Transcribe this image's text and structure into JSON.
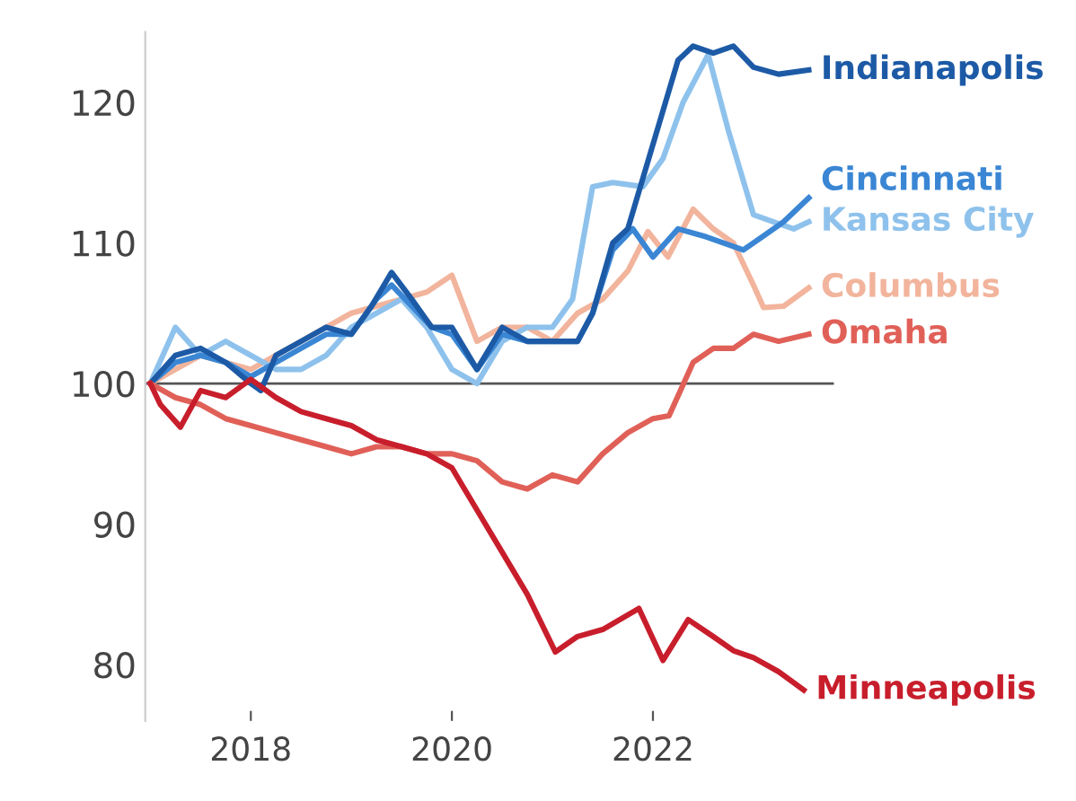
{
  "chart_data": {
    "type": "line",
    "xlim": [
      2016.95,
      2023.8
    ],
    "ylim": [
      76,
      125
    ],
    "xticks": [
      2018,
      2020,
      2022
    ],
    "yticks": [
      80,
      90,
      100,
      110,
      120
    ],
    "grid": false,
    "legend": false,
    "marker": "none",
    "line_style": "solid",
    "ref_lines": [
      {
        "axis": "y",
        "value": 100,
        "color": "#555555"
      }
    ],
    "series": [
      {
        "name": "Columbus",
        "color": "#f2b49c",
        "x": [
          2017.0,
          2017.25,
          2017.5,
          2017.75,
          2018.0,
          2018.25,
          2018.5,
          2018.75,
          2019.0,
          2019.25,
          2019.5,
          2019.75,
          2020.0,
          2020.25,
          2020.5,
          2020.75,
          2021.0,
          2021.25,
          2021.5,
          2021.75,
          2021.95,
          2022.15,
          2022.4,
          2022.6,
          2022.8,
          2023.0,
          2023.1,
          2023.3,
          2023.55
        ],
        "values": [
          100,
          101,
          102,
          101.5,
          101,
          102,
          103,
          104,
          105,
          105.5,
          106,
          106.5,
          107.7,
          103,
          104,
          104,
          103,
          105,
          106,
          108,
          110.8,
          109,
          112.4,
          111,
          110,
          107,
          105.4,
          105.5,
          106.8
        ]
      },
      {
        "name": "Kansas City",
        "color": "#8ec2ec",
        "x": [
          2017.0,
          2017.25,
          2017.5,
          2017.75,
          2018.0,
          2018.25,
          2018.5,
          2018.75,
          2019.0,
          2019.25,
          2019.5,
          2019.75,
          2020.0,
          2020.25,
          2020.5,
          2020.75,
          2021.0,
          2021.2,
          2021.4,
          2021.6,
          2021.9,
          2022.1,
          2022.3,
          2022.55,
          2022.75,
          2023.0,
          2023.2,
          2023.4,
          2023.55
        ],
        "values": [
          100,
          104,
          102,
          103,
          102,
          101,
          101,
          102,
          104,
          105,
          106,
          104,
          101,
          100,
          103,
          104,
          104,
          106,
          114,
          114.3,
          114,
          116,
          120,
          123.4,
          118,
          112,
          111.5,
          111,
          111.5
        ]
      },
      {
        "name": "Cincinnati",
        "color": "#3a86d4",
        "x": [
          2017.0,
          2017.25,
          2017.5,
          2017.75,
          2018.0,
          2018.25,
          2018.5,
          2018.75,
          2019.0,
          2019.25,
          2019.4,
          2019.6,
          2019.8,
          2020.0,
          2020.25,
          2020.5,
          2020.75,
          2021.0,
          2021.25,
          2021.4,
          2021.6,
          2021.8,
          2022.0,
          2022.25,
          2022.5,
          2022.9,
          2023.1,
          2023.3,
          2023.55
        ],
        "values": [
          100,
          101.5,
          102,
          101.5,
          100.5,
          101.5,
          102.5,
          103.5,
          103.5,
          106,
          107,
          105.5,
          104,
          103.5,
          101,
          103.5,
          103,
          103,
          103,
          105,
          109.5,
          111,
          109,
          111,
          110.5,
          109.5,
          110.5,
          111.5,
          113.2
        ]
      },
      {
        "name": "Indianapolis",
        "color": "#1d5aa6",
        "x": [
          2017.0,
          2017.25,
          2017.5,
          2017.75,
          2018.0,
          2018.1,
          2018.25,
          2018.5,
          2018.75,
          2019.0,
          2019.2,
          2019.4,
          2019.6,
          2019.8,
          2020.0,
          2020.25,
          2020.5,
          2020.75,
          2021.0,
          2021.25,
          2021.4,
          2021.6,
          2021.75,
          2022.0,
          2022.25,
          2022.4,
          2022.6,
          2022.8,
          2023.0,
          2023.25,
          2023.55
        ],
        "values": [
          100,
          102,
          102.5,
          101.5,
          100,
          99.5,
          102,
          103,
          104,
          103.5,
          105.5,
          107.9,
          106,
          104,
          104,
          101,
          104,
          103,
          103,
          103,
          105,
          110,
          111,
          117,
          123,
          124,
          123.5,
          124,
          122.5,
          122,
          122.3
        ]
      },
      {
        "name": "Omaha",
        "color": "#e06058",
        "x": [
          2017.0,
          2017.25,
          2017.5,
          2017.75,
          2018.0,
          2018.25,
          2018.5,
          2018.75,
          2019.0,
          2019.25,
          2019.5,
          2019.75,
          2020.0,
          2020.25,
          2020.5,
          2020.75,
          2021.0,
          2021.25,
          2021.5,
          2021.75,
          2022.0,
          2022.16,
          2022.4,
          2022.6,
          2022.8,
          2023.0,
          2023.25,
          2023.55
        ],
        "values": [
          100,
          99,
          98.5,
          97.5,
          97,
          96.5,
          96,
          95.5,
          95,
          95.5,
          95.5,
          95,
          95,
          94.5,
          93,
          92.5,
          93.5,
          93,
          95,
          96.5,
          97.5,
          97.7,
          101.5,
          102.5,
          102.5,
          103.5,
          103,
          103.5
        ]
      },
      {
        "name": "Minneapolis",
        "color": "#c81e2c",
        "x": [
          2017.0,
          2017.1,
          2017.3,
          2017.5,
          2017.75,
          2018.0,
          2018.25,
          2018.5,
          2018.75,
          2019.0,
          2019.25,
          2019.5,
          2019.75,
          2020.0,
          2020.25,
          2020.5,
          2020.75,
          2021.03,
          2021.25,
          2021.5,
          2021.86,
          2022.1,
          2022.35,
          2022.6,
          2022.8,
          2023.0,
          2023.25,
          2023.5
        ],
        "values": [
          100,
          98.5,
          96.9,
          99.5,
          99,
          100.3,
          99,
          98,
          97.5,
          97,
          96,
          95.5,
          95,
          94,
          91,
          88,
          85,
          80.9,
          82,
          82.5,
          84,
          80.3,
          83.2,
          82,
          81,
          80.5,
          79.5,
          78.2
        ]
      }
    ]
  }
}
